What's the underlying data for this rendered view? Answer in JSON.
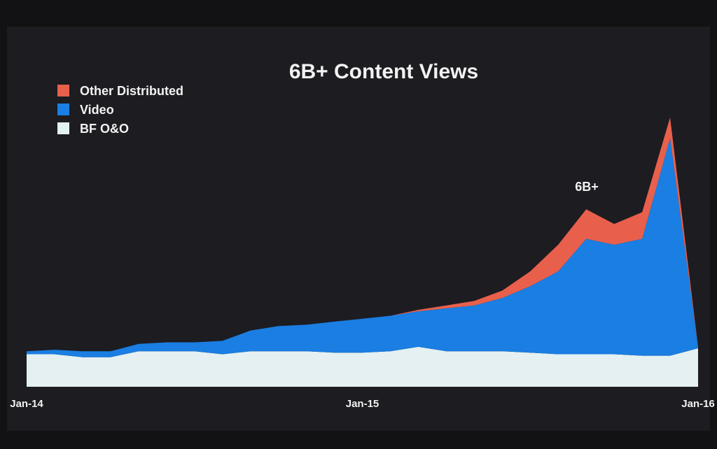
{
  "chart_data": {
    "type": "stacked-area",
    "title": "6B+ Content Views",
    "annotation": "6B+",
    "categories": [
      "Jan-14",
      null,
      null,
      null,
      null,
      null,
      null,
      null,
      null,
      null,
      null,
      null,
      "Jan-15",
      null,
      null,
      null,
      null,
      null,
      null,
      null,
      null,
      null,
      null,
      null,
      "Jan-16"
    ],
    "series": [
      {
        "name": "BF O&O",
        "color": "#e4f0f2",
        "values": [
          1.1,
          1.1,
          1.0,
          1.0,
          1.2,
          1.2,
          1.2,
          1.1,
          1.2,
          1.2,
          1.2,
          1.15,
          1.15,
          1.2,
          1.35,
          1.2,
          1.2,
          1.2,
          1.15,
          1.1,
          1.1,
          1.1,
          1.05,
          1.05,
          1.3
        ]
      },
      {
        "name": "Video",
        "color": "#1a7ee2",
        "values": [
          0.1,
          0.15,
          0.2,
          0.2,
          0.25,
          0.3,
          0.3,
          0.45,
          0.7,
          0.85,
          0.9,
          1.05,
          1.15,
          1.2,
          1.2,
          1.45,
          1.55,
          1.8,
          2.25,
          2.8,
          3.9,
          3.7,
          3.95,
          7.35,
          0.05
        ]
      },
      {
        "name": "Other Distributed",
        "color": "#e8604c",
        "values": [
          0,
          0,
          0,
          0,
          0,
          0,
          0,
          0,
          0,
          0,
          0,
          0,
          0,
          0,
          0.05,
          0.1,
          0.15,
          0.25,
          0.5,
          0.9,
          1.0,
          0.7,
          0.9,
          0.7,
          0
        ]
      }
    ]
  }
}
